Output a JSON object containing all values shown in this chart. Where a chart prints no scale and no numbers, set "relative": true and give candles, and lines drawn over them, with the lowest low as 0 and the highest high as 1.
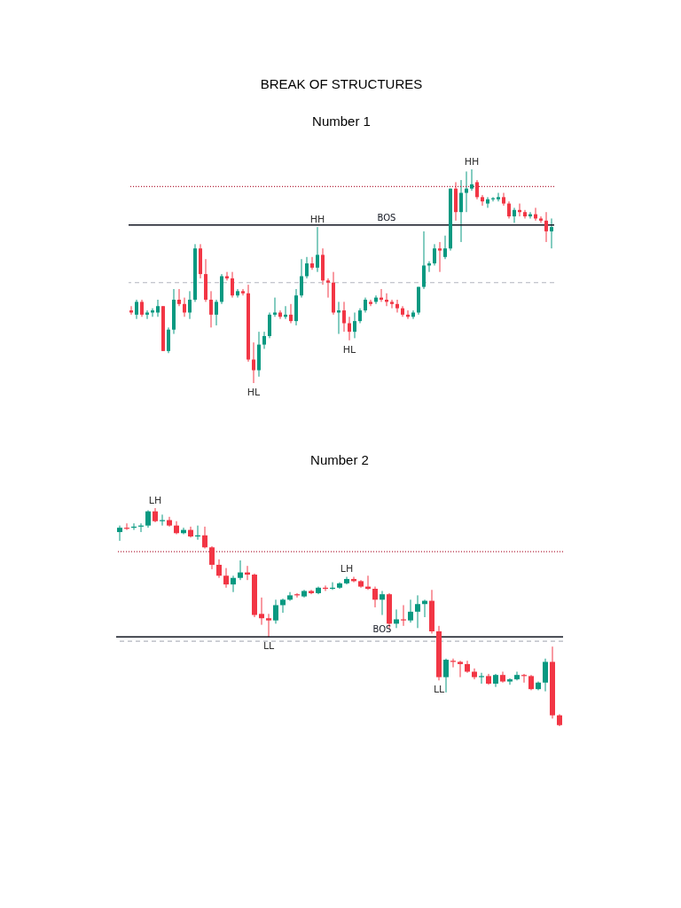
{
  "chart_data": [
    {
      "type": "candlestick",
      "title": "BREAK OF STRUCTURES",
      "subtitle": "Number 1",
      "relative": true,
      "tick_labels": false,
      "categories": [
        null,
        null,
        null,
        null,
        null,
        null,
        null,
        null,
        null,
        null,
        null,
        null,
        null,
        null,
        null,
        null,
        null,
        null,
        null,
        null,
        null,
        null,
        null,
        null,
        null,
        null,
        null,
        null,
        null,
        null,
        null,
        null,
        null,
        null,
        null,
        null,
        null,
        null,
        null,
        null,
        null,
        null,
        null,
        null,
        null,
        null,
        null,
        null,
        null,
        null,
        null,
        null,
        null,
        null,
        null,
        null,
        null,
        null,
        null,
        null,
        null,
        null,
        null,
        null,
        null,
        null,
        null,
        null,
        null,
        null,
        null,
        null,
        null,
        null,
        null,
        null,
        null,
        null,
        null,
        null
      ],
      "ohlc": [
        [
          0.34,
          0.36,
          0.32,
          0.33
        ],
        [
          0.32,
          0.39,
          0.3,
          0.38
        ],
        [
          0.38,
          0.39,
          0.31,
          0.32
        ],
        [
          0.32,
          0.34,
          0.3,
          0.33
        ],
        [
          0.33,
          0.35,
          0.31,
          0.34
        ],
        [
          0.33,
          0.39,
          0.31,
          0.36
        ],
        [
          0.36,
          0.36,
          0.15,
          0.15
        ],
        [
          0.15,
          0.26,
          0.14,
          0.25
        ],
        [
          0.25,
          0.44,
          0.23,
          0.39
        ],
        [
          0.39,
          0.44,
          0.36,
          0.37
        ],
        [
          0.37,
          0.4,
          0.31,
          0.33
        ],
        [
          0.33,
          0.43,
          0.3,
          0.39
        ],
        [
          0.39,
          0.65,
          0.38,
          0.63
        ],
        [
          0.63,
          0.65,
          0.49,
          0.51
        ],
        [
          0.51,
          0.58,
          0.38,
          0.39
        ],
        [
          0.39,
          0.43,
          0.26,
          0.32
        ],
        [
          0.32,
          0.39,
          0.27,
          0.38
        ],
        [
          0.38,
          0.51,
          0.37,
          0.5
        ],
        [
          0.5,
          0.52,
          0.48,
          0.49
        ],
        [
          0.49,
          0.52,
          0.4,
          0.41
        ],
        [
          0.41,
          0.44,
          0.4,
          0.43
        ],
        [
          0.43,
          0.44,
          0.41,
          0.42
        ],
        [
          0.42,
          0.46,
          0.1,
          0.11
        ],
        [
          0.11,
          0.19,
          0,
          0.06
        ],
        [
          0.06,
          0.24,
          0.03,
          0.18
        ],
        [
          0.18,
          0.24,
          0.16,
          0.22
        ],
        [
          0.22,
          0.33,
          0.21,
          0.32
        ],
        [
          0.32,
          0.4,
          0.31,
          0.33
        ],
        [
          0.33,
          0.34,
          0.3,
          0.31
        ],
        [
          0.31,
          0.36,
          0.3,
          0.32
        ],
        [
          0.32,
          0.37,
          0.28,
          0.29
        ],
        [
          0.29,
          0.44,
          0.27,
          0.41
        ],
        [
          0.41,
          0.58,
          0.4,
          0.5
        ],
        [
          0.5,
          0.59,
          0.49,
          0.56
        ],
        [
          0.56,
          0.59,
          0.53,
          0.54
        ],
        [
          0.54,
          0.73,
          0.52,
          0.6
        ],
        [
          0.6,
          0.63,
          0.46,
          0.48
        ],
        [
          0.48,
          0.49,
          0.4,
          0.47
        ],
        [
          0.47,
          0.52,
          0.32,
          0.33
        ],
        [
          0.33,
          0.38,
          0.23,
          0.34
        ],
        [
          0.34,
          0.38,
          0.24,
          0.28
        ],
        [
          0.28,
          0.31,
          0.2,
          0.24
        ],
        [
          0.24,
          0.33,
          0.21,
          0.29
        ],
        [
          0.29,
          0.35,
          0.28,
          0.34
        ],
        [
          0.34,
          0.4,
          0.33,
          0.39
        ],
        [
          0.38,
          0.39,
          0.36,
          0.37
        ],
        [
          0.38,
          0.41,
          0.37,
          0.4
        ],
        [
          0.4,
          0.44,
          0.38,
          0.39
        ],
        [
          0.39,
          0.42,
          0.36,
          0.38
        ],
        [
          0.38,
          0.39,
          0.35,
          0.37
        ],
        [
          0.37,
          0.39,
          0.33,
          0.35
        ],
        [
          0.35,
          0.36,
          0.31,
          0.32
        ],
        [
          0.32,
          0.34,
          0.3,
          0.31
        ],
        [
          0.31,
          0.34,
          0.3,
          0.33
        ],
        [
          0.33,
          0.45,
          0.32,
          0.45
        ],
        [
          0.45,
          0.71,
          0.44,
          0.55
        ],
        [
          0.55,
          0.57,
          0.52,
          0.56
        ],
        [
          0.56,
          0.65,
          0.55,
          0.63
        ],
        [
          0.63,
          0.66,
          0.52,
          0.62
        ],
        [
          0.59,
          0.69,
          0.58,
          0.63
        ],
        [
          0.63,
          0.91,
          0.62,
          0.91
        ],
        [
          0.91,
          0.94,
          0.76,
          0.8
        ],
        [
          0.8,
          0.95,
          0.66,
          0.89
        ],
        [
          0.89,
          0.99,
          0.8,
          0.91
        ],
        [
          0.91,
          1,
          0.9,
          0.93
        ],
        [
          0.94,
          0.95,
          0.86,
          0.87
        ],
        [
          0.87,
          0.88,
          0.83,
          0.85
        ],
        [
          0.84,
          0.87,
          0.82,
          0.86
        ],
        [
          0.86,
          0.87,
          0.85,
          0.865
        ],
        [
          0.86,
          0.89,
          0.85,
          0.87
        ],
        [
          0.87,
          0.89,
          0.83,
          0.84
        ],
        [
          0.84,
          0.85,
          0.77,
          0.78
        ],
        [
          0.78,
          0.82,
          0.75,
          0.81
        ],
        [
          0.81,
          0.84,
          0.78,
          0.8
        ],
        [
          0.8,
          0.81,
          0.77,
          0.78
        ],
        [
          0.78,
          0.8,
          0.77,
          0.79
        ],
        [
          0.79,
          0.82,
          0.76,
          0.77
        ],
        [
          0.77,
          0.78,
          0.75,
          0.76
        ],
        [
          0.76,
          0.8,
          0.66,
          0.71
        ],
        [
          0.71,
          0.77,
          0.63,
          0.73
        ]
      ],
      "ref_lines": [
        {
          "axis": "y",
          "value": 0.92,
          "color": "#b2223a",
          "line_style": "dotted"
        },
        {
          "axis": "y",
          "value": 0.47,
          "color": "#b2b5be",
          "line_style": "dashed"
        },
        {
          "axis": "y",
          "value": 0.74,
          "label": "BOS",
          "color": "#131722",
          "line_style": "solid"
        }
      ],
      "annotations": [
        {
          "text": "HH",
          "y": 1
        },
        {
          "text": "HH",
          "y": 0.73
        },
        {
          "text": "HL",
          "y": 0
        },
        {
          "text": "HL",
          "y": 0.2
        }
      ]
    },
    {
      "type": "candlestick",
      "title": "Number 2",
      "relative": true,
      "tick_labels": false,
      "categories": [
        null,
        null,
        null,
        null,
        null,
        null,
        null,
        null,
        null,
        null,
        null,
        null,
        null,
        null,
        null,
        null,
        null,
        null,
        null,
        null,
        null,
        null,
        null,
        null,
        null,
        null,
        null,
        null,
        null,
        null,
        null,
        null,
        null,
        null,
        null,
        null,
        null,
        null,
        null,
        null,
        null,
        null,
        null,
        null,
        null,
        null,
        null,
        null,
        null,
        null,
        null,
        null,
        null,
        null,
        null,
        null,
        null,
        null,
        null,
        null,
        null,
        null,
        null
      ],
      "ohlc": [
        [
          0.89,
          0.92,
          0.85,
          0.91
        ],
        [
          0.91,
          0.93,
          0.9,
          0.905
        ],
        [
          0.91,
          0.93,
          0.9,
          0.915
        ],
        [
          0.915,
          0.93,
          0.89,
          0.92
        ],
        [
          0.92,
          0.99,
          0.91,
          0.985
        ],
        [
          0.985,
          1,
          0.935,
          0.94
        ],
        [
          0.94,
          0.97,
          0.92,
          0.945
        ],
        [
          0.945,
          0.96,
          0.915,
          0.92
        ],
        [
          0.92,
          0.94,
          0.88,
          0.885
        ],
        [
          0.885,
          0.91,
          0.88,
          0.9
        ],
        [
          0.9,
          0.915,
          0.865,
          0.87
        ],
        [
          0.87,
          0.92,
          0.855,
          0.875
        ],
        [
          0.875,
          0.915,
          0.815,
          0.82
        ],
        [
          0.82,
          0.825,
          0.72,
          0.74
        ],
        [
          0.74,
          0.765,
          0.68,
          0.69
        ],
        [
          0.69,
          0.725,
          0.635,
          0.65
        ],
        [
          0.65,
          0.69,
          0.615,
          0.68
        ],
        [
          0.68,
          0.76,
          0.67,
          0.705
        ],
        [
          0.705,
          0.735,
          0.67,
          0.695
        ],
        [
          0.695,
          0.7,
          0.5,
          0.51
        ],
        [
          0.515,
          0.59,
          0.465,
          0.495
        ],
        [
          0.495,
          0.515,
          0.41,
          0.485
        ],
        [
          0.485,
          0.58,
          0.47,
          0.555
        ],
        [
          0.555,
          0.585,
          0.52,
          0.58
        ],
        [
          0.58,
          0.615,
          0.575,
          0.6
        ],
        [
          0.605,
          0.61,
          0.59,
          0.6
        ],
        [
          0.595,
          0.625,
          0.59,
          0.62
        ],
        [
          0.62,
          0.625,
          0.605,
          0.61
        ],
        [
          0.61,
          0.64,
          0.605,
          0.635
        ],
        [
          0.635,
          0.645,
          0.62,
          0.63
        ],
        [
          0.63,
          0.66,
          0.625,
          0.635
        ],
        [
          0.635,
          0.66,
          0.63,
          0.655
        ],
        [
          0.655,
          0.685,
          0.65,
          0.675
        ],
        [
          0.675,
          0.685,
          0.66,
          0.665
        ],
        [
          0.665,
          0.67,
          0.635,
          0.64
        ],
        [
          0.64,
          0.69,
          0.625,
          0.63
        ],
        [
          0.63,
          0.64,
          0.545,
          0.58
        ],
        [
          0.58,
          0.62,
          0.51,
          0.605
        ],
        [
          0.605,
          0.61,
          0.45,
          0.47
        ],
        [
          0.47,
          0.535,
          0.45,
          0.49
        ],
        [
          0.49,
          0.555,
          0.46,
          0.485
        ],
        [
          0.485,
          0.58,
          0.475,
          0.525
        ],
        [
          0.525,
          0.6,
          0.45,
          0.56
        ],
        [
          0.56,
          0.58,
          0.5,
          0.575
        ],
        [
          0.575,
          0.625,
          0.425,
          0.435
        ],
        [
          0.435,
          0.46,
          0.21,
          0.225
        ],
        [
          0.225,
          0.31,
          0.155,
          0.305
        ],
        [
          0.3,
          0.31,
          0.27,
          0.295
        ],
        [
          0.295,
          0.3,
          0.225,
          0.285
        ],
        [
          0.285,
          0.3,
          0.245,
          0.25
        ],
        [
          0.25,
          0.265,
          0.215,
          0.225
        ],
        [
          0.225,
          0.245,
          0.195,
          0.23
        ],
        [
          0.23,
          0.24,
          0.19,
          0.195
        ],
        [
          0.195,
          0.24,
          0.18,
          0.235
        ],
        [
          0.235,
          0.25,
          0.2,
          0.205
        ],
        [
          0.205,
          0.22,
          0.19,
          0.215
        ],
        [
          0.215,
          0.25,
          0.21,
          0.235
        ],
        [
          0.235,
          0.24,
          0.2,
          0.23
        ],
        [
          0.23,
          0.235,
          0.165,
          0.17
        ],
        [
          0.17,
          0.205,
          0.165,
          0.2
        ],
        [
          0.2,
          0.31,
          0.16,
          0.295
        ],
        [
          0.295,
          0.365,
          0.035,
          0.05
        ],
        [
          0.05,
          0.055,
          0,
          0.005
        ]
      ],
      "ref_lines": [
        {
          "axis": "y",
          "value": 0.8,
          "color": "#b2223a",
          "line_style": "dotted"
        },
        {
          "axis": "y",
          "value": 0.39,
          "color": "#b2b5be",
          "line_style": "dashed"
        },
        {
          "axis": "y",
          "value": 0.41,
          "label": "BOS",
          "color": "#131722",
          "line_style": "solid"
        }
      ],
      "annotations": [
        {
          "text": "LH",
          "y": 1
        },
        {
          "text": "LL",
          "y": 0.41
        },
        {
          "text": "LH",
          "y": 0.685
        },
        {
          "text": "LL",
          "y": 0.21
        }
      ]
    }
  ]
}
